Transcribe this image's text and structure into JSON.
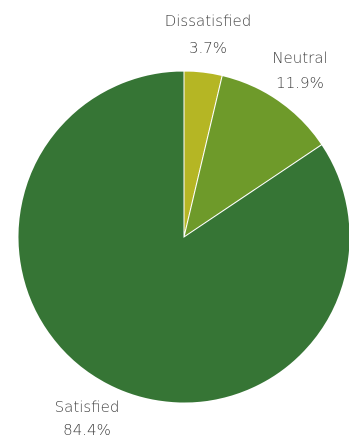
{
  "chart_data": {
    "type": "pie",
    "slices": [
      {
        "label": "Dissatisfied",
        "value": 3.7,
        "value_label": "3.7%",
        "color": "#b5b624"
      },
      {
        "label": "Neutral",
        "value": 11.9,
        "value_label": "11.9%",
        "color": "#6e9a2a"
      },
      {
        "label": "Satisfied",
        "value": 84.4,
        "value_label": "84.4%",
        "color": "#367535"
      }
    ],
    "start_angle": "12 o'clock",
    "direction": "clockwise",
    "legend": "none"
  }
}
